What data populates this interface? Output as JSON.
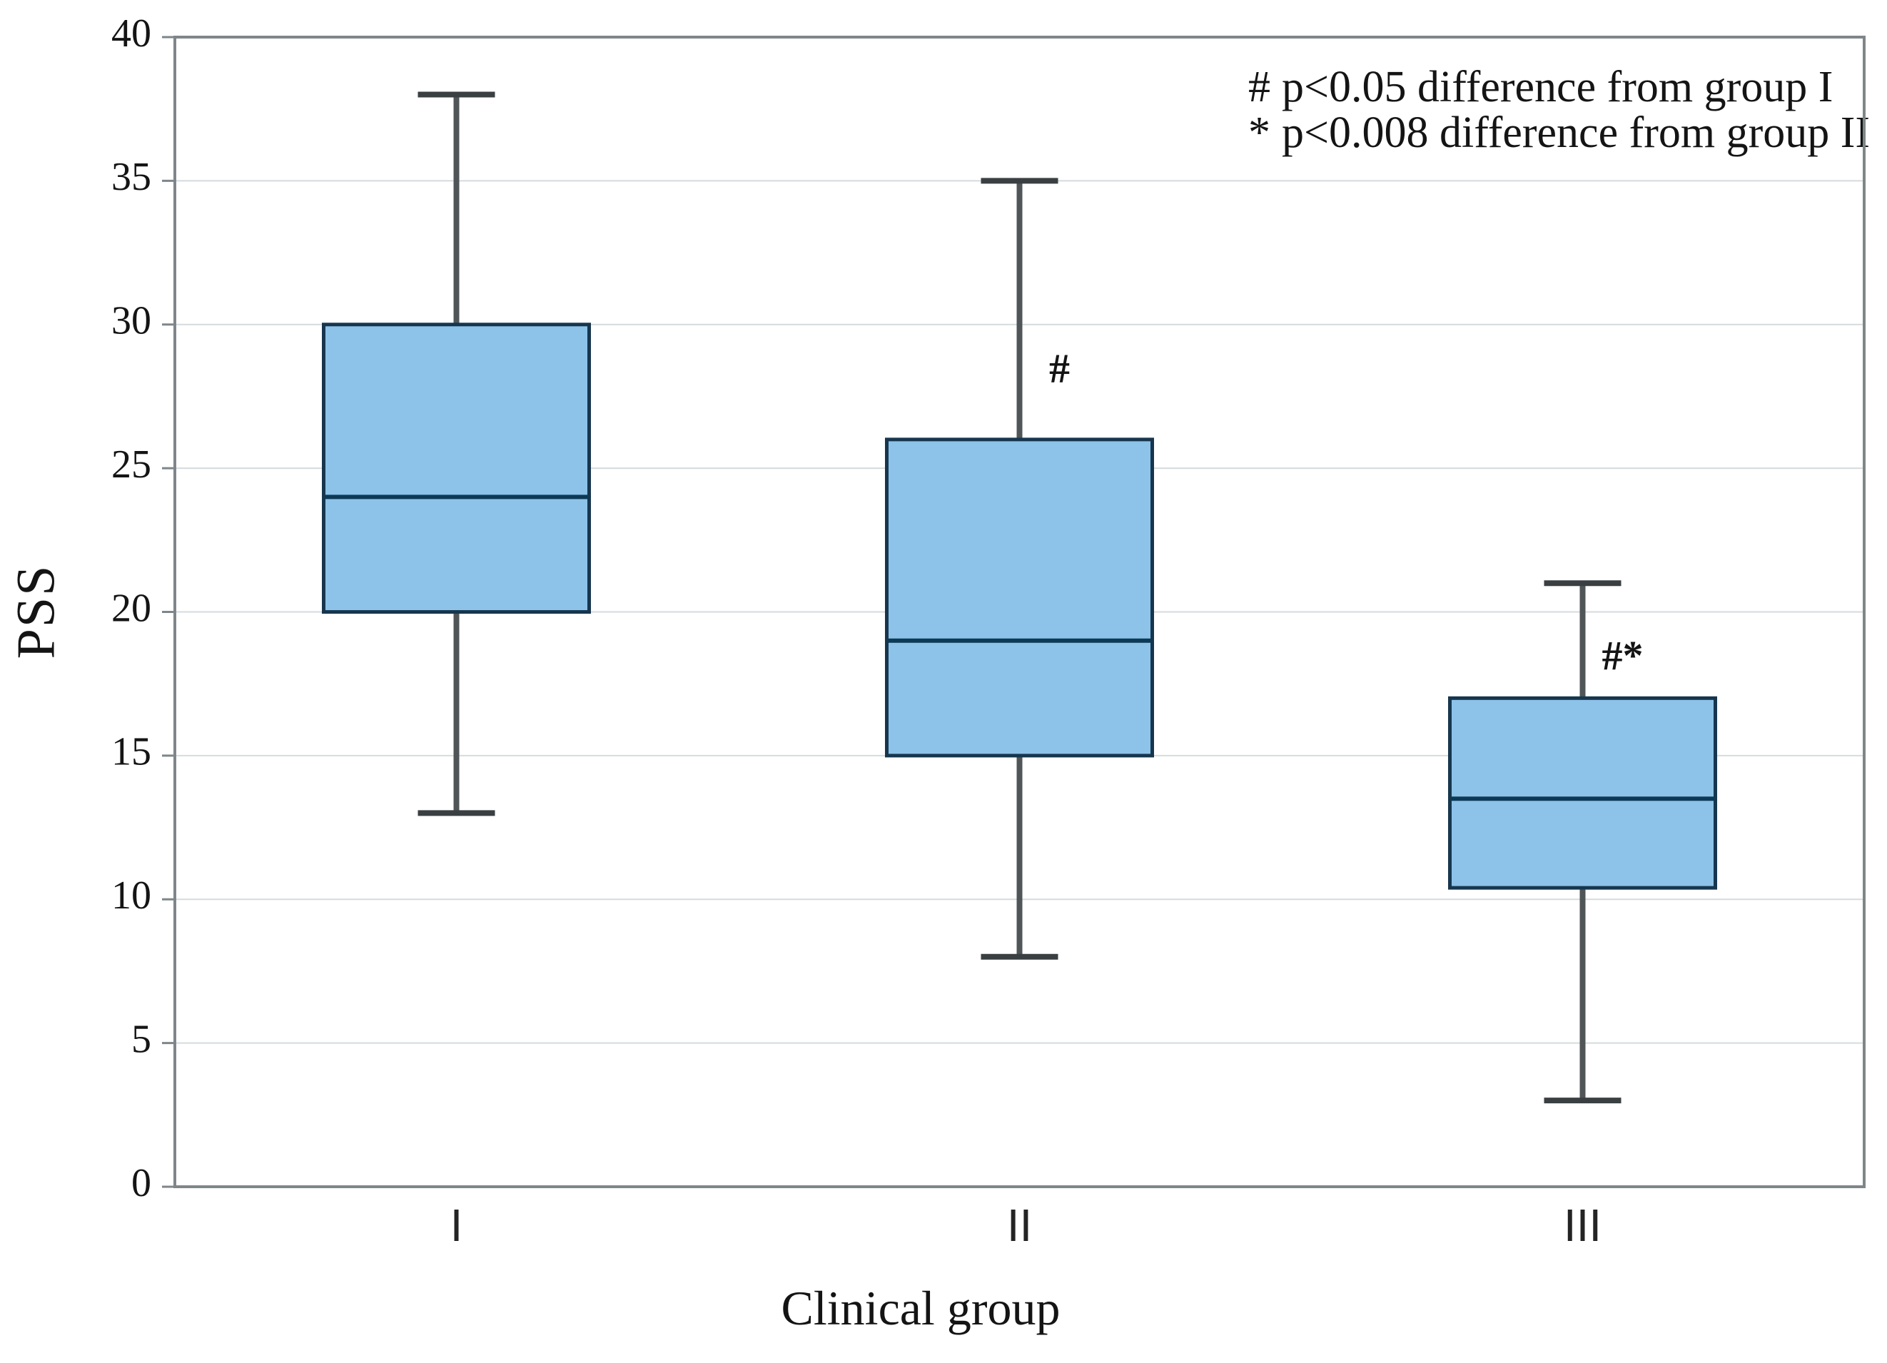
{
  "chart_data": {
    "type": "boxplot",
    "title": "",
    "xlabel": "Clinical group",
    "ylabel": "PSS",
    "ylim": [
      0,
      40
    ],
    "yticks": [
      0,
      5,
      10,
      15,
      20,
      25,
      30,
      35,
      40
    ],
    "grid": true,
    "legend_position": "top-right",
    "categories": [
      "I",
      "II",
      "III"
    ],
    "series": [
      {
        "category": "I",
        "whisker_low": 13,
        "q1": 20,
        "median": 24,
        "q3": 30,
        "whisker_high": 38,
        "annotation": "",
        "annotation_y": null
      },
      {
        "category": "II",
        "whisker_low": 8,
        "q1": 15,
        "median": 19,
        "q3": 26,
        "whisker_high": 35,
        "annotation": "#",
        "annotation_y": 28
      },
      {
        "category": "III",
        "whisker_low": 3,
        "q1": 10.4,
        "median": 13.5,
        "q3": 17,
        "whisker_high": 21,
        "annotation": "#*",
        "annotation_y": 18
      }
    ],
    "legend": [
      {
        "symbol": "#",
        "text": "p<0.05 difference from group I"
      },
      {
        "symbol": "*",
        "text": "p<0.008 difference from group II"
      }
    ],
    "colors": {
      "box_fill": "#8dc3e9",
      "box_border": "#17364e",
      "median": "#0d3954",
      "whisker": "#505558",
      "whisker_cap": "#3a3f42",
      "grid": "#d5dbde",
      "plot_border": "#7e8689",
      "text": "#141414",
      "category_text": "#242424"
    }
  }
}
